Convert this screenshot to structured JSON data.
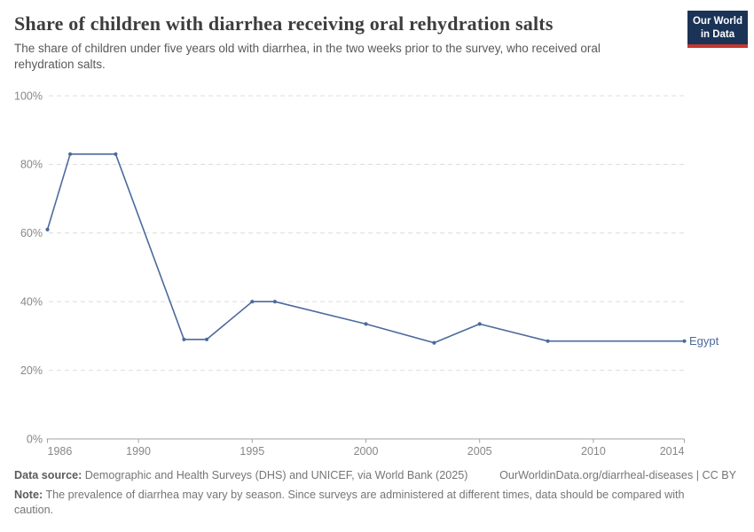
{
  "logo": {
    "line1": "Our World",
    "line2": "in Data"
  },
  "colors": {
    "line": "#4c6a9c",
    "grid": "#dddddd",
    "axis": "#a3a3a3",
    "tick_label": "#878787",
    "title": "#3d3d3d",
    "subtitle": "#595959",
    "footer": "#757575",
    "footer_bold": "#5b5b5b",
    "logo_bg": "#1a3356",
    "logo_bar": "#c7372d"
  },
  "chart_data": {
    "type": "line",
    "title": "Share of children with diarrhea receiving oral rehydration salts",
    "subtitle": "The share of children under five years old with diarrhea, in the two weeks prior to the survey, who received oral rehydration salts.",
    "series": [
      {
        "name": "Egypt",
        "x": [
          1986,
          1987,
          1989,
          1992,
          1993,
          1995,
          1996,
          2000,
          2003,
          2005,
          2008,
          2014
        ],
        "values": [
          61,
          83,
          83,
          29,
          29,
          40,
          40,
          33.5,
          28,
          33.5,
          28.5,
          28.5
        ]
      }
    ],
    "xlabel": "",
    "ylabel": "",
    "xlim": [
      1986,
      2014
    ],
    "ylim": [
      0,
      100
    ],
    "xticks": [
      1986,
      1990,
      1995,
      2000,
      2005,
      2010,
      2014
    ],
    "yticks": [
      0,
      20,
      40,
      60,
      80,
      100
    ],
    "ytick_suffix": "%",
    "grid": "horizontal-dashed",
    "legend_position": "end-of-line"
  },
  "footer": {
    "datasource_label": "Data source:",
    "datasource": "Demographic and Health Surveys (DHS) and UNICEF, via World Bank (2025)",
    "attribution": "OurWorldinData.org/diarrheal-diseases | CC BY",
    "note_label": "Note:",
    "note": "The prevalence of diarrhea may vary by season. Since surveys are administered at different times, data should be compared with caution."
  }
}
